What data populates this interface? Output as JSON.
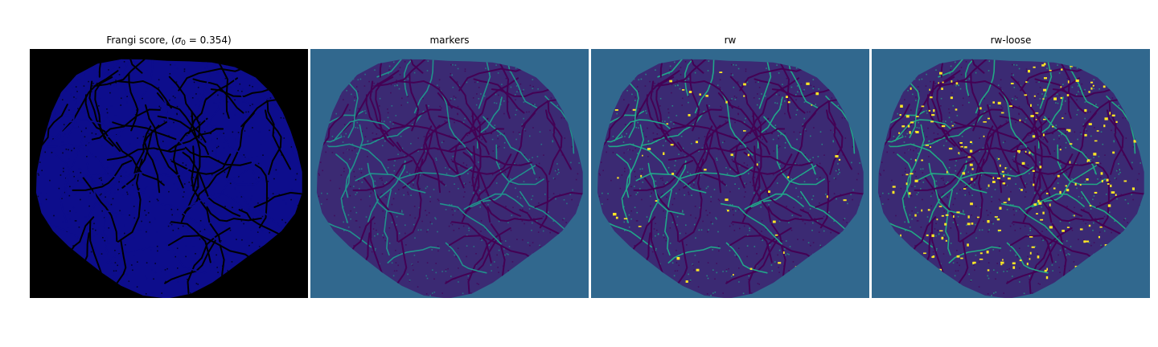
{
  "figure": {
    "panels": [
      {
        "id": "frangi",
        "title_prefix": "Frangi score, (",
        "title_sigma": "σ",
        "title_sub": "0",
        "title_suffix": " = 0.354)",
        "background_color": "#000000",
        "fill_color": "#0d0d8c",
        "line_color": "#000000",
        "highlight_color": "#0d0d8c"
      },
      {
        "id": "markers",
        "title": "markers",
        "background_color": "#31688e",
        "fill_color": "#3b2a73",
        "line_color": "#440154",
        "highlight_color": "#21918c"
      },
      {
        "id": "rw",
        "title": "rw",
        "background_color": "#31688e",
        "fill_color": "#3b2a73",
        "line_color": "#440154",
        "highlight_color": "#21a78a",
        "accent_color": "#fde725"
      },
      {
        "id": "rw-loose",
        "title": "rw-loose",
        "background_color": "#31688e",
        "fill_color": "#3b2a73",
        "line_color": "#440154",
        "highlight_color": "#22a884",
        "accent_color": "#fde725"
      }
    ]
  }
}
